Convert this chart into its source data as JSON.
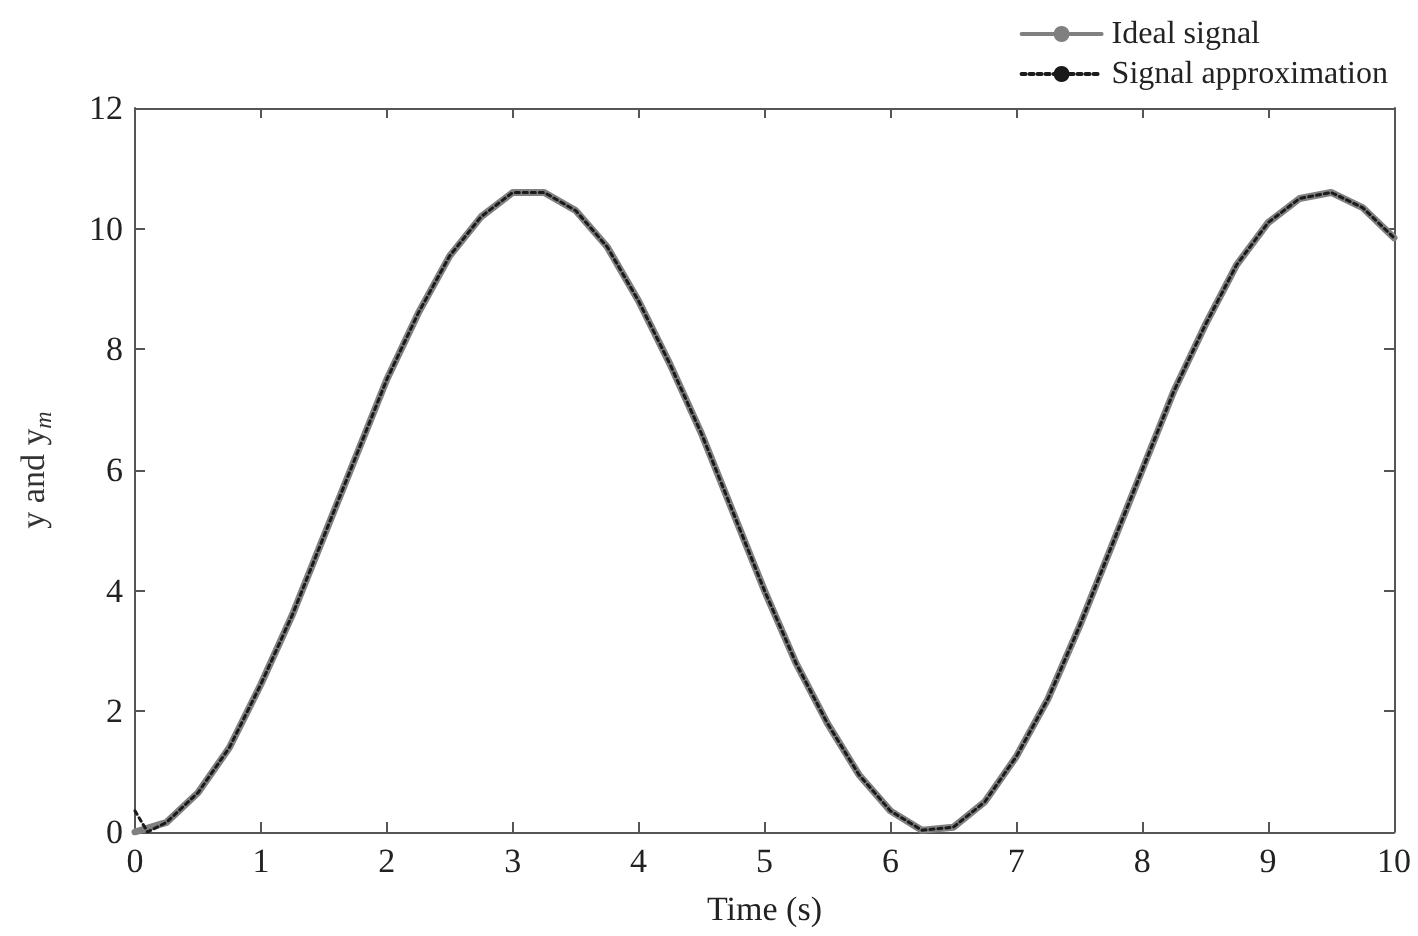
{
  "chart_data": {
    "type": "line",
    "xlabel": "Time (s)",
    "ylabel": "y and y$_{m}$",
    "xlim": [
      0,
      10
    ],
    "xticks": [
      0,
      1,
      2,
      3,
      4,
      5,
      6,
      7,
      8,
      9,
      10
    ],
    "ylim": [
      0,
      12
    ],
    "yticks": [
      0,
      2,
      4,
      6,
      8,
      10,
      12
    ],
    "grid": false,
    "legend": "top right",
    "marker": "none",
    "x": [
      0,
      0.25,
      0.5,
      0.75,
      1,
      1.25,
      1.5,
      1.75,
      2,
      2.25,
      2.5,
      2.75,
      3,
      3.25,
      3.5,
      3.75,
      4,
      4.25,
      4.5,
      4.75,
      5,
      5.25,
      5.5,
      5.75,
      6,
      6.25,
      6.5,
      6.75,
      7,
      7.25,
      7.5,
      7.75,
      8,
      8.25,
      8.5,
      8.75,
      9,
      9.25,
      9.5,
      9.75,
      10
    ],
    "series": [
      {
        "name": "Ideal signal",
        "color": "#808080",
        "line_style": "solid",
        "values": [
          0,
          0.16,
          0.65,
          1.4,
          2.45,
          3.6,
          4.9,
          6.2,
          7.5,
          8.6,
          9.55,
          10.2,
          10.6,
          10.6,
          10.3,
          9.7,
          8.8,
          7.75,
          6.6,
          5.3,
          4.0,
          2.8,
          1.8,
          0.95,
          0.35,
          0.03,
          0.08,
          0.5,
          1.25,
          2.2,
          3.4,
          4.7,
          6.0,
          7.3,
          8.4,
          9.4,
          10.1,
          10.5,
          10.6,
          10.35,
          9.85
        ]
      },
      {
        "name": "Signal approximation",
        "color": "#1a1a1a",
        "line_style": "dotted",
        "x": [
          0,
          0.1,
          0.25,
          0.5,
          0.75,
          1,
          1.25,
          1.5,
          1.75,
          2,
          2.25,
          2.5,
          2.75,
          3,
          3.25,
          3.5,
          3.75,
          4,
          4.25,
          4.5,
          4.75,
          5,
          5.25,
          5.5,
          5.75,
          6,
          6.25,
          6.5,
          6.75,
          7,
          7.25,
          7.5,
          7.75,
          8,
          8.25,
          8.5,
          8.75,
          9,
          9.25,
          9.5,
          9.75,
          10
        ],
        "values": [
          0.35,
          0,
          0.16,
          0.65,
          1.4,
          2.45,
          3.6,
          4.9,
          6.2,
          7.5,
          8.6,
          9.55,
          10.2,
          10.6,
          10.6,
          10.3,
          9.7,
          8.8,
          7.75,
          6.6,
          5.3,
          4.0,
          2.8,
          1.8,
          0.95,
          0.35,
          0.03,
          0.08,
          0.5,
          1.25,
          2.2,
          3.4,
          4.7,
          6.0,
          7.3,
          8.4,
          9.4,
          10.1,
          10.5,
          10.6,
          10.35,
          9.85
        ]
      }
    ]
  }
}
